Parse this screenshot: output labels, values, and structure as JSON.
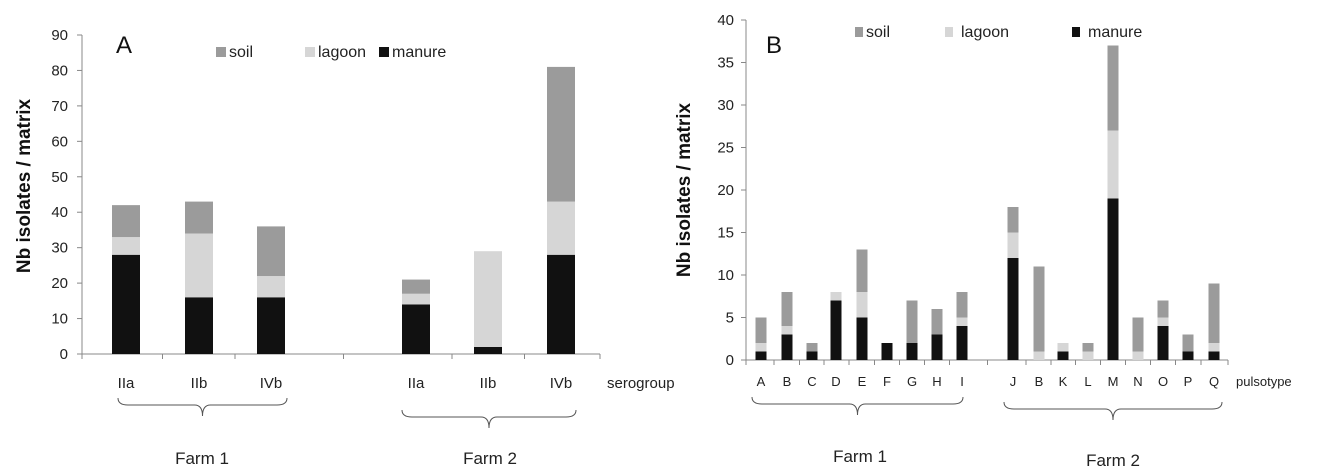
{
  "colors": {
    "soil": "#9b9b9b",
    "lagoon": "#d6d6d6",
    "manure": "#111111",
    "axis": "#888888"
  },
  "chart_data": [
    {
      "type": "bar",
      "stacked": true,
      "panel_label": "A",
      "ylabel": "Nb isolates / matrix",
      "xlabel": "serogroup",
      "ylim": [
        0,
        90
      ],
      "yticks": [
        0,
        10,
        20,
        30,
        40,
        50,
        60,
        70,
        80,
        90
      ],
      "legend": [
        "soil",
        "lagoon",
        "manure"
      ],
      "legend_position": "top",
      "groups": [
        {
          "label": "Farm 1",
          "categories": [
            "IIa",
            "IIb",
            "IVb"
          ]
        },
        {
          "label": "Farm 2",
          "categories": [
            "IIa",
            "IIb",
            "IVb"
          ]
        }
      ],
      "categories": [
        "IIa",
        "IIb",
        "IVb",
        "IIa",
        "IIb",
        "IVb"
      ],
      "series": [
        {
          "name": "manure",
          "values": [
            28,
            16,
            16,
            14,
            2,
            28
          ]
        },
        {
          "name": "lagoon",
          "values": [
            5,
            18,
            6,
            3,
            27,
            15
          ]
        },
        {
          "name": "soil",
          "values": [
            9,
            9,
            14,
            4,
            0,
            38
          ]
        }
      ]
    },
    {
      "type": "bar",
      "stacked": true,
      "panel_label": "B",
      "ylabel": "Nb isolates / matrix",
      "xlabel": "pulsotype",
      "ylim": [
        0,
        40
      ],
      "yticks": [
        0,
        5,
        10,
        15,
        20,
        25,
        30,
        35,
        40
      ],
      "legend": [
        "soil",
        "lagoon",
        "manure"
      ],
      "legend_position": "top",
      "groups": [
        {
          "label": "Farm 1",
          "categories": [
            "A",
            "B",
            "C",
            "D",
            "E",
            "F",
            "G",
            "H",
            "I"
          ]
        },
        {
          "label": "Farm 2",
          "categories": [
            "J",
            "B",
            "K",
            "L",
            "M",
            "N",
            "O",
            "P",
            "Q"
          ]
        }
      ],
      "categories": [
        "A",
        "B",
        "C",
        "D",
        "E",
        "F",
        "G",
        "H",
        "I",
        "J",
        "B",
        "K",
        "L",
        "M",
        "N",
        "O",
        "P",
        "Q"
      ],
      "series": [
        {
          "name": "manure",
          "values": [
            1,
            3,
            1,
            7,
            5,
            2,
            2,
            3,
            4,
            12,
            0,
            1,
            0,
            19,
            0,
            4,
            1,
            1
          ]
        },
        {
          "name": "lagoon",
          "values": [
            1,
            1,
            0,
            1,
            3,
            0,
            0,
            0,
            1,
            3,
            1,
            1,
            1,
            8,
            1,
            1,
            0,
            1
          ]
        },
        {
          "name": "soil",
          "values": [
            3,
            4,
            1,
            0,
            5,
            0,
            5,
            3,
            3,
            3,
            10,
            0,
            1,
            10,
            4,
            2,
            2,
            7
          ]
        }
      ]
    }
  ]
}
